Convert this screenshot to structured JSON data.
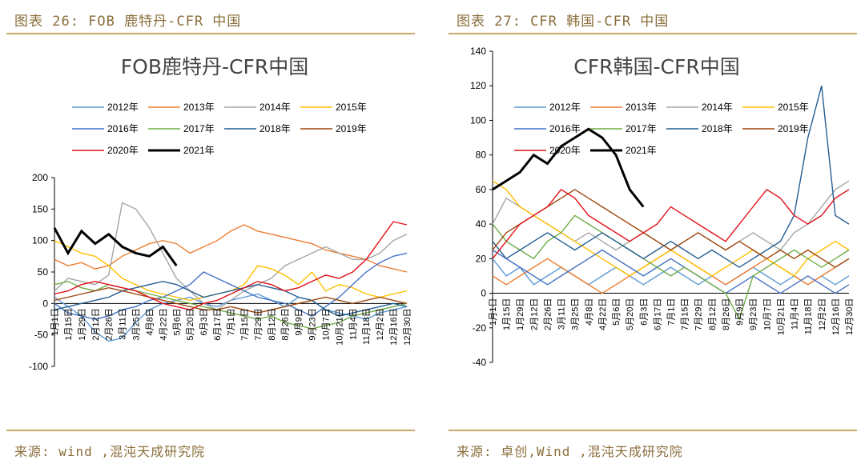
{
  "left": {
    "caption": "图表 26: FOB 鹿特丹-CFR 中国",
    "source": "来源: wind ,混沌天成研究院"
  },
  "right": {
    "caption": "图表 27: CFR 韩国-CFR 中国",
    "source": "来源: 卓创,Wind ,混沌天成研究院"
  },
  "colors": {
    "2012年": "#5b9bd5",
    "2013年": "#ed7d31",
    "2014年": "#a5a5a5",
    "2015年": "#ffc000",
    "2016年": "#4472c4",
    "2017年": "#70ad47",
    "2018年": "#255e91",
    "2019年": "#9e480e",
    "2020年": "#e0121a",
    "2021年": "#000000",
    "rule": "#c8a96a"
  },
  "chart_data": [
    {
      "type": "line",
      "title": "FOB鹿特丹-CFR中国",
      "ylim": [
        -100,
        200
      ],
      "yticks": [
        -100,
        -50,
        0,
        50,
        100,
        150,
        200
      ],
      "x_ticks": [
        "1月1日",
        "1月15日",
        "1月29日",
        "2月12日",
        "2月26日",
        "3月11日",
        "3月25日",
        "4月8日",
        "4月22日",
        "5月6日",
        "5月20日",
        "6月3日",
        "6月17日",
        "7月1日",
        "7月15日",
        "7月29日",
        "8月12日",
        "8月26日",
        "9月9日",
        "9月23日",
        "10月7日",
        "10月21日",
        "11月4日",
        "11月18日",
        "12月2日",
        "12月16日",
        "12月30日"
      ],
      "legend_position": "top",
      "series": [
        {
          "name": "2012年",
          "values": [
            10,
            -5,
            -20,
            -45,
            -60,
            -55,
            -30,
            -10,
            0,
            5,
            10,
            0,
            -5,
            5,
            10,
            15,
            5,
            -5,
            10,
            5,
            -10,
            -15,
            -20,
            -25,
            -15,
            -10,
            -5
          ]
        },
        {
          "name": "2013年",
          "values": [
            70,
            60,
            65,
            55,
            60,
            75,
            85,
            95,
            100,
            95,
            80,
            90,
            100,
            115,
            125,
            115,
            110,
            105,
            100,
            95,
            85,
            80,
            75,
            70,
            60,
            55,
            50
          ]
        },
        {
          "name": "2014年",
          "values": [
            20,
            40,
            35,
            30,
            45,
            160,
            150,
            120,
            80,
            40,
            20,
            0,
            -10,
            5,
            20,
            30,
            40,
            60,
            70,
            80,
            90,
            80,
            70,
            70,
            80,
            100,
            110
          ]
        },
        {
          "name": "2015年",
          "values": [
            100,
            90,
            80,
            75,
            60,
            40,
            30,
            20,
            15,
            10,
            5,
            10,
            15,
            20,
            30,
            60,
            55,
            45,
            30,
            50,
            20,
            30,
            25,
            15,
            10,
            15,
            20
          ]
        },
        {
          "name": "2016年",
          "values": [
            0,
            -15,
            -20,
            -25,
            -20,
            -10,
            -5,
            5,
            10,
            20,
            30,
            50,
            40,
            30,
            20,
            10,
            5,
            0,
            -10,
            -20,
            -5,
            10,
            30,
            50,
            65,
            75,
            80
          ]
        },
        {
          "name": "2017年",
          "values": [
            30,
            35,
            25,
            20,
            30,
            25,
            20,
            15,
            10,
            5,
            0,
            -5,
            -10,
            -15,
            -20,
            -25,
            -20,
            -30,
            -35,
            -40,
            -35,
            -30,
            -20,
            -15,
            -10,
            -5,
            0
          ]
        },
        {
          "name": "2018年",
          "values": [
            -10,
            -5,
            0,
            5,
            10,
            20,
            25,
            30,
            35,
            30,
            20,
            10,
            15,
            20,
            25,
            30,
            25,
            20,
            10,
            5,
            -10,
            -20,
            -15,
            -10,
            -5,
            0,
            -5
          ]
        },
        {
          "name": "2019年",
          "values": [
            5,
            10,
            15,
            20,
            25,
            20,
            15,
            10,
            5,
            0,
            -5,
            -10,
            -10,
            -5,
            -10,
            -15,
            -10,
            -5,
            0,
            5,
            10,
            5,
            0,
            5,
            10,
            5,
            0
          ]
        },
        {
          "name": "2020年",
          "values": [
            15,
            20,
            30,
            35,
            30,
            25,
            20,
            10,
            0,
            -5,
            -10,
            0,
            5,
            15,
            25,
            35,
            30,
            20,
            25,
            35,
            45,
            40,
            50,
            70,
            100,
            130,
            125
          ]
        },
        {
          "name": "2021年",
          "values": [
            120,
            80,
            115,
            95,
            110,
            90,
            80,
            75,
            90,
            60
          ]
        }
      ]
    },
    {
      "type": "line",
      "title": "CFR韩国-CFR中国",
      "ylim": [
        -40,
        140
      ],
      "yticks": [
        -40,
        -20,
        0,
        20,
        40,
        60,
        80,
        100,
        120,
        140
      ],
      "x_ticks": [
        "1月1日",
        "1月15日",
        "1月29日",
        "2月12日",
        "2月26日",
        "3月11日",
        "3月25日",
        "4月8日",
        "4月22日",
        "5月6日",
        "5月20日",
        "6月3日",
        "6月17日",
        "7月1日",
        "7月15日",
        "7月29日",
        "8月12日",
        "8月26日",
        "9月9日",
        "9月23日",
        "10月7日",
        "10月21日",
        "11月4日",
        "11月18日",
        "12月2日",
        "12月16日",
        "12月30日"
      ],
      "legend_position": "top",
      "series": [
        {
          "name": "2012年",
          "values": [
            20,
            10,
            15,
            5,
            10,
            15,
            10,
            5,
            10,
            15,
            10,
            5,
            10,
            15,
            10,
            5,
            10,
            5,
            10,
            15,
            10,
            5,
            10,
            5,
            10,
            5,
            10
          ]
        },
        {
          "name": "2013年",
          "values": [
            10,
            5,
            10,
            15,
            20,
            15,
            10,
            5,
            0,
            5,
            10,
            15,
            20,
            25,
            20,
            15,
            10,
            5,
            10,
            15,
            20,
            15,
            10,
            5,
            10,
            15,
            20
          ]
        },
        {
          "name": "2014年",
          "values": [
            40,
            55,
            50,
            45,
            40,
            35,
            30,
            35,
            30,
            25,
            30,
            35,
            30,
            25,
            30,
            35,
            30,
            25,
            30,
            35,
            30,
            25,
            35,
            40,
            50,
            60,
            65
          ]
        },
        {
          "name": "2015年",
          "values": [
            65,
            60,
            50,
            45,
            40,
            35,
            30,
            25,
            20,
            15,
            10,
            15,
            20,
            25,
            20,
            15,
            10,
            15,
            20,
            25,
            20,
            15,
            10,
            20,
            25,
            30,
            25
          ]
        },
        {
          "name": "2016年",
          "values": [
            25,
            20,
            15,
            10,
            5,
            10,
            15,
            20,
            25,
            20,
            15,
            10,
            15,
            20,
            15,
            10,
            5,
            0,
            5,
            10,
            5,
            0,
            5,
            10,
            5,
            0,
            5
          ]
        },
        {
          "name": "2017年",
          "values": [
            40,
            30,
            25,
            20,
            30,
            35,
            45,
            40,
            35,
            30,
            25,
            20,
            15,
            10,
            15,
            10,
            5,
            0,
            -15,
            10,
            15,
            20,
            25,
            20,
            15,
            20,
            25
          ]
        },
        {
          "name": "2018年",
          "values": [
            30,
            20,
            25,
            30,
            35,
            30,
            25,
            30,
            35,
            30,
            25,
            20,
            25,
            30,
            25,
            20,
            25,
            20,
            15,
            20,
            25,
            30,
            45,
            90,
            120,
            45,
            40
          ]
        },
        {
          "name": "2019年",
          "values": [
            25,
            35,
            40,
            45,
            50,
            55,
            60,
            55,
            50,
            45,
            40,
            35,
            30,
            25,
            30,
            35,
            30,
            25,
            30,
            25,
            20,
            25,
            20,
            25,
            20,
            15,
            20
          ]
        },
        {
          "name": "2020年",
          "values": [
            20,
            30,
            40,
            45,
            50,
            60,
            55,
            45,
            40,
            35,
            30,
            35,
            40,
            50,
            45,
            40,
            35,
            30,
            40,
            50,
            60,
            55,
            45,
            40,
            45,
            55,
            60
          ]
        },
        {
          "name": "2021年",
          "values": [
            60,
            65,
            70,
            80,
            75,
            85,
            90,
            95,
            90,
            80,
            60,
            50
          ]
        }
      ]
    }
  ]
}
